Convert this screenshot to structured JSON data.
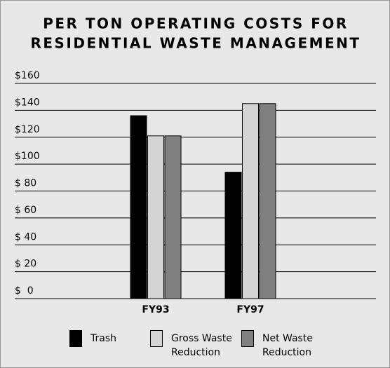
{
  "chart_data": {
    "type": "bar",
    "title": [
      "PER TON OPERATING COSTS FOR",
      "RESIDENTIAL WASTE MANAGEMENT"
    ],
    "categories": [
      "FY93",
      "FY97"
    ],
    "series": [
      {
        "name": "Trash",
        "color": "#000000",
        "values": [
          136,
          94
        ]
      },
      {
        "name": "Gross Waste Reduction",
        "color": "#d4d4d4",
        "values": [
          121,
          145
        ]
      },
      {
        "name": "Net Waste Reduction",
        "color": "#808080",
        "values": [
          121,
          145
        ]
      }
    ],
    "ylim": [
      0,
      160
    ],
    "yticks": [
      {
        "value": 0,
        "label": "$  0"
      },
      {
        "value": 20,
        "label": "$ 20"
      },
      {
        "value": 40,
        "label": "$ 40"
      },
      {
        "value": 60,
        "label": "$ 60"
      },
      {
        "value": 80,
        "label": "$ 80"
      },
      {
        "value": 100,
        "label": "$100"
      },
      {
        "value": 120,
        "label": "$120"
      },
      {
        "value": 140,
        "label": "$140"
      },
      {
        "value": 160,
        "label": "$160"
      }
    ],
    "grid": true
  }
}
